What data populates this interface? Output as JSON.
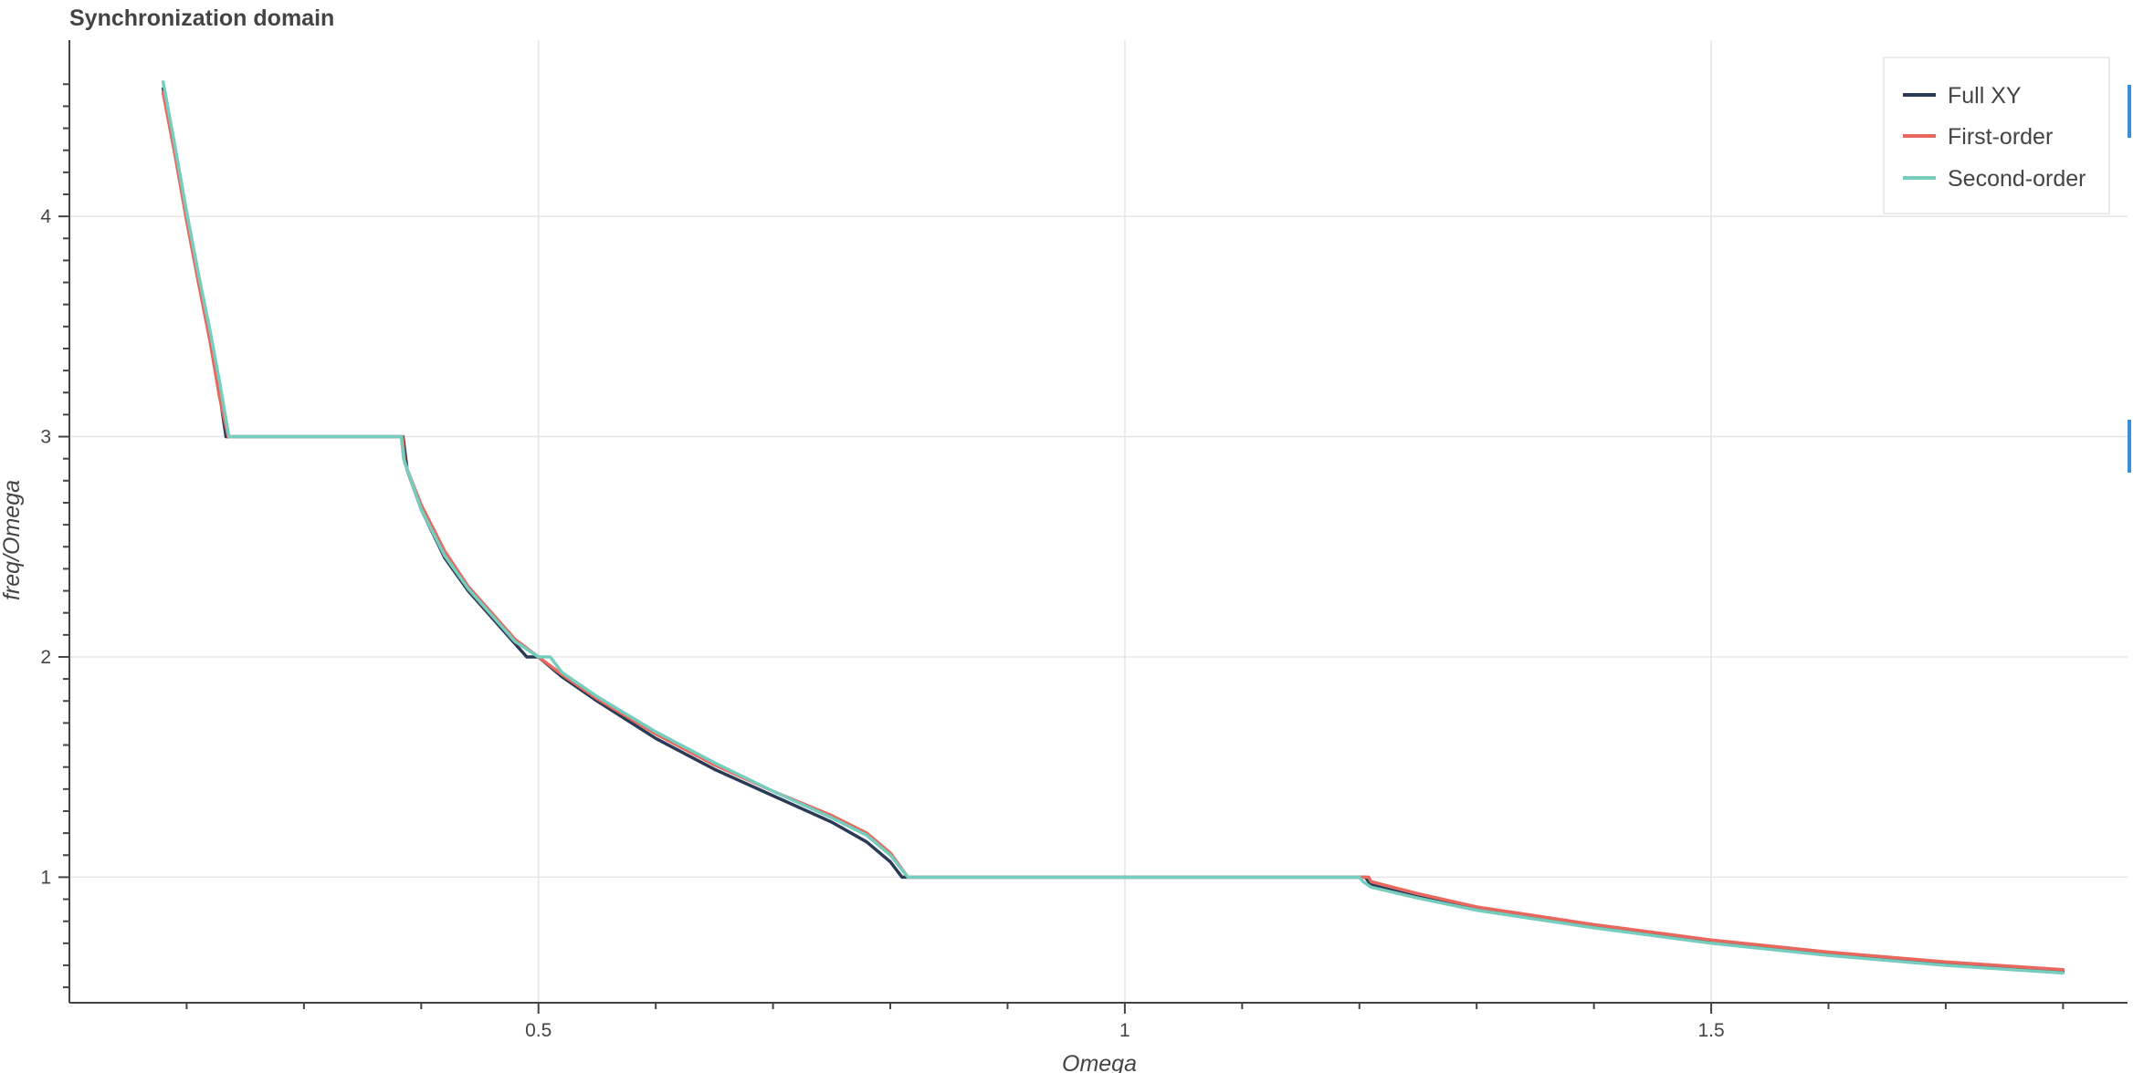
{
  "chart_data": {
    "type": "line",
    "title": "Synchronization domain",
    "xlabel": "Omega",
    "ylabel": "freq/Omega",
    "xlim": [
      0.1,
      1.855
    ],
    "ylim": [
      0.43,
      4.8
    ],
    "x_ticks": [
      0.5,
      1,
      1.5
    ],
    "x_tick_labels": [
      "0.5",
      "1",
      "1.5"
    ],
    "y_ticks": [
      1,
      2,
      3,
      4
    ],
    "y_tick_labels": [
      "1",
      "2",
      "3",
      "4"
    ],
    "grid": true,
    "legend_position": "top-right",
    "series": [
      {
        "name": "Full XY",
        "color": "#2b3a55",
        "points": [
          [
            0.18,
            4.58
          ],
          [
            0.19,
            4.3
          ],
          [
            0.2,
            4.0
          ],
          [
            0.21,
            3.72
          ],
          [
            0.22,
            3.45
          ],
          [
            0.228,
            3.2
          ],
          [
            0.2335,
            3.0
          ],
          [
            0.3,
            3.0
          ],
          [
            0.35,
            3.0
          ],
          [
            0.3845,
            3.0
          ],
          [
            0.388,
            2.85
          ],
          [
            0.4,
            2.67
          ],
          [
            0.42,
            2.45
          ],
          [
            0.44,
            2.3
          ],
          [
            0.46,
            2.18
          ],
          [
            0.48,
            2.06
          ],
          [
            0.49,
            2.0
          ],
          [
            0.5,
            2.0
          ],
          [
            0.52,
            1.91
          ],
          [
            0.55,
            1.8
          ],
          [
            0.6,
            1.63
          ],
          [
            0.65,
            1.49
          ],
          [
            0.7,
            1.37
          ],
          [
            0.75,
            1.25
          ],
          [
            0.78,
            1.16
          ],
          [
            0.8,
            1.07
          ],
          [
            0.81,
            1.0
          ],
          [
            0.9,
            1.0
          ],
          [
            1.0,
            1.0
          ],
          [
            1.1,
            1.0
          ],
          [
            1.2,
            1.0
          ],
          [
            1.205,
            1.0
          ],
          [
            1.21,
            0.965
          ],
          [
            1.25,
            0.91
          ],
          [
            1.3,
            0.855
          ],
          [
            1.4,
            0.775
          ],
          [
            1.5,
            0.705
          ],
          [
            1.6,
            0.65
          ],
          [
            1.7,
            0.605
          ],
          [
            1.8,
            0.57
          ]
        ]
      },
      {
        "name": "First-order",
        "color": "#e8685e",
        "points": [
          [
            0.18,
            4.56
          ],
          [
            0.19,
            4.28
          ],
          [
            0.2,
            3.98
          ],
          [
            0.21,
            3.7
          ],
          [
            0.22,
            3.43
          ],
          [
            0.228,
            3.18
          ],
          [
            0.2355,
            3.0
          ],
          [
            0.3,
            3.0
          ],
          [
            0.35,
            3.0
          ],
          [
            0.384,
            3.0
          ],
          [
            0.386,
            2.88
          ],
          [
            0.4,
            2.69
          ],
          [
            0.42,
            2.48
          ],
          [
            0.44,
            2.32
          ],
          [
            0.46,
            2.2
          ],
          [
            0.48,
            2.08
          ],
          [
            0.5,
            2.0
          ],
          [
            0.52,
            1.92
          ],
          [
            0.55,
            1.81
          ],
          [
            0.6,
            1.65
          ],
          [
            0.65,
            1.51
          ],
          [
            0.7,
            1.39
          ],
          [
            0.75,
            1.28
          ],
          [
            0.78,
            1.2
          ],
          [
            0.8,
            1.11
          ],
          [
            0.815,
            1.0
          ],
          [
            0.9,
            1.0
          ],
          [
            1.0,
            1.0
          ],
          [
            1.1,
            1.0
          ],
          [
            1.2,
            1.0
          ],
          [
            1.208,
            1.0
          ],
          [
            1.21,
            0.98
          ],
          [
            1.25,
            0.925
          ],
          [
            1.3,
            0.865
          ],
          [
            1.4,
            0.785
          ],
          [
            1.5,
            0.715
          ],
          [
            1.6,
            0.66
          ],
          [
            1.7,
            0.615
          ],
          [
            1.8,
            0.58
          ]
        ]
      },
      {
        "name": "Second-order",
        "color": "#76cdbd",
        "points": [
          [
            0.18,
            4.61
          ],
          [
            0.19,
            4.32
          ],
          [
            0.2,
            4.02
          ],
          [
            0.21,
            3.74
          ],
          [
            0.22,
            3.48
          ],
          [
            0.228,
            3.25
          ],
          [
            0.236,
            3.0
          ],
          [
            0.3,
            3.0
          ],
          [
            0.35,
            3.0
          ],
          [
            0.383,
            3.0
          ],
          [
            0.385,
            2.9
          ],
          [
            0.4,
            2.67
          ],
          [
            0.42,
            2.46
          ],
          [
            0.44,
            2.31
          ],
          [
            0.46,
            2.19
          ],
          [
            0.48,
            2.07
          ],
          [
            0.5,
            2.0
          ],
          [
            0.51,
            2.0
          ],
          [
            0.52,
            1.93
          ],
          [
            0.55,
            1.82
          ],
          [
            0.6,
            1.66
          ],
          [
            0.65,
            1.52
          ],
          [
            0.7,
            1.39
          ],
          [
            0.75,
            1.27
          ],
          [
            0.78,
            1.19
          ],
          [
            0.8,
            1.1
          ],
          [
            0.815,
            1.0
          ],
          [
            0.9,
            1.0
          ],
          [
            1.0,
            1.0
          ],
          [
            1.1,
            1.0
          ],
          [
            1.2,
            1.0
          ],
          [
            1.203,
            0.98
          ],
          [
            1.21,
            0.955
          ],
          [
            1.25,
            0.905
          ],
          [
            1.3,
            0.85
          ],
          [
            1.4,
            0.77
          ],
          [
            1.5,
            0.7
          ],
          [
            1.6,
            0.645
          ],
          [
            1.7,
            0.6
          ],
          [
            1.8,
            0.565
          ]
        ]
      }
    ],
    "right_edge_markers_color": "#3a8fd9"
  }
}
